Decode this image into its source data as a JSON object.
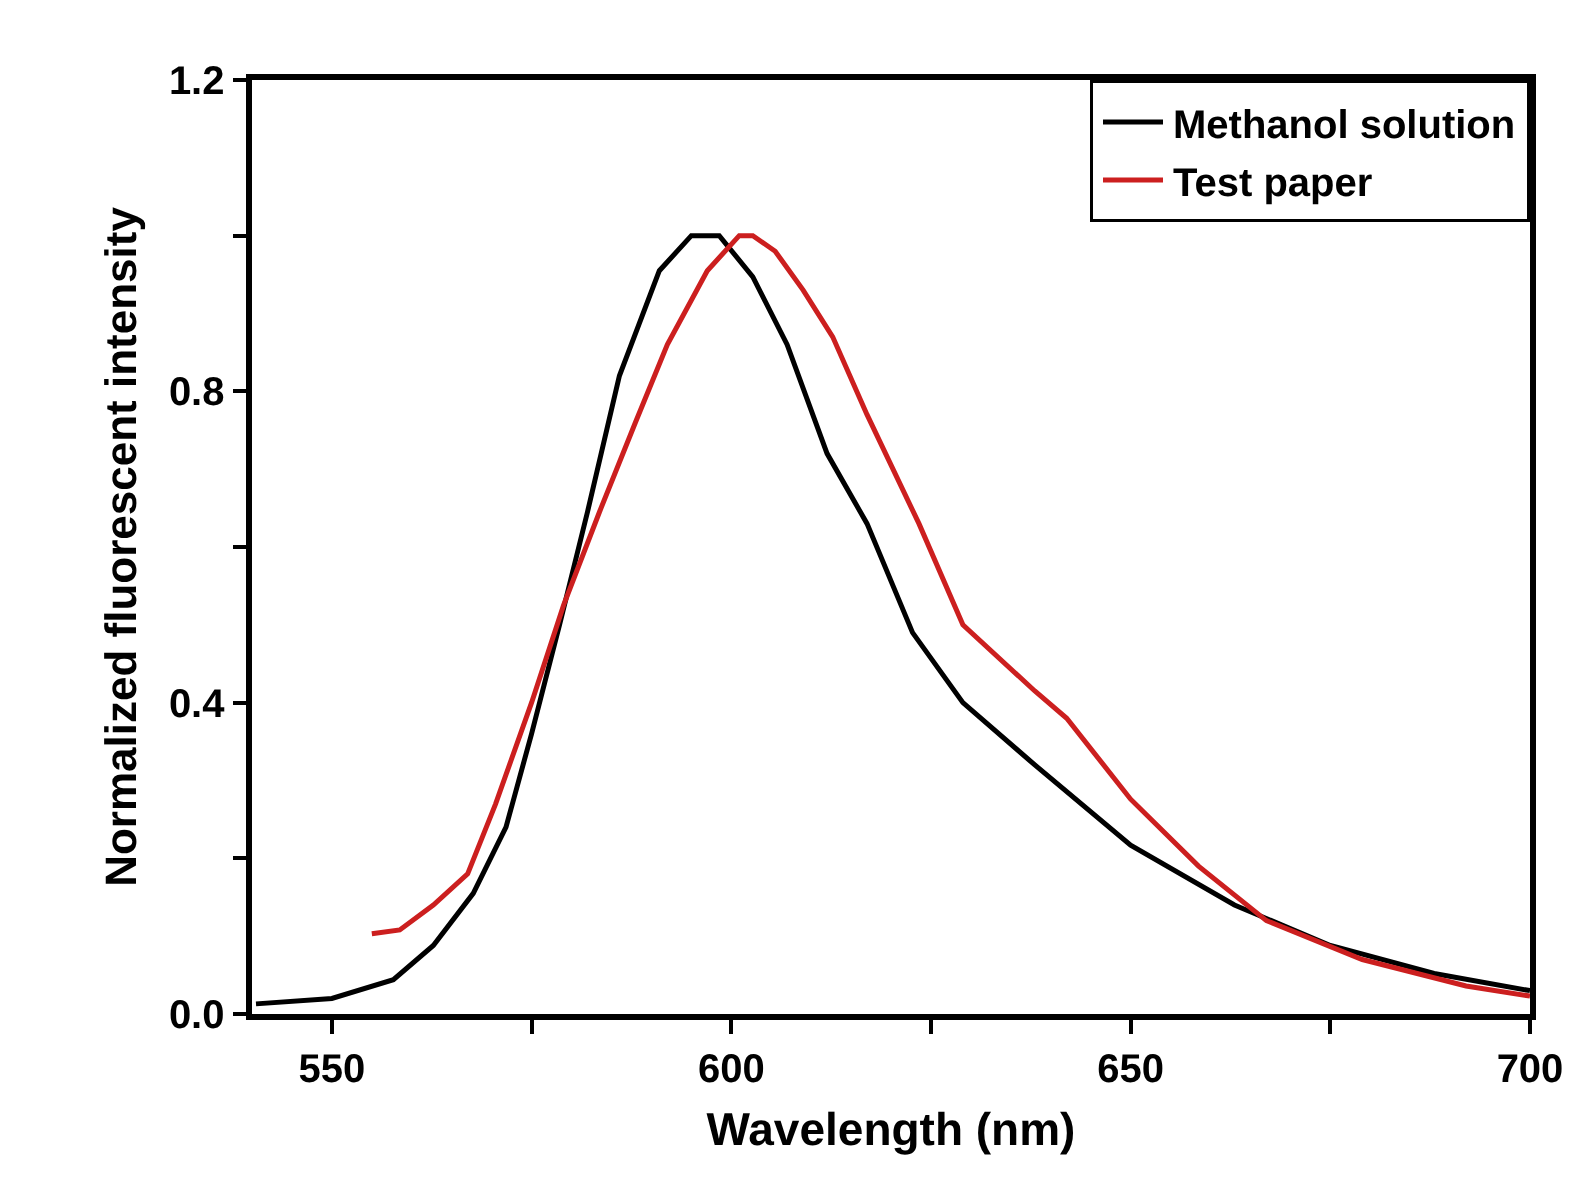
{
  "chart_data": {
    "type": "line",
    "xlabel": "Wavelength (nm)",
    "ylabel": "Normalized fluorescent intensity",
    "xlim": [
      540,
      700
    ],
    "ylim": [
      0,
      1.2
    ],
    "xticks": [
      550,
      {
        "value": 575,
        "label": null
      },
      600,
      {
        "value": 625,
        "label": null
      },
      650,
      {
        "value": 675,
        "label": null
      },
      700
    ],
    "yticks": [
      {
        "value": 0,
        "label": "0.0"
      },
      {
        "value": 0.2,
        "label": null
      },
      0.4,
      {
        "value": 0.6,
        "label": null
      },
      0.8,
      {
        "value": 1.0,
        "label": null
      },
      1.2
    ],
    "grid": false,
    "legend": "top right",
    "marker": "none",
    "line_style": "solid",
    "series": [
      {
        "name": "Methanol solution",
        "color": "#000000",
        "x": [
          540.5,
          550,
          557.7,
          562.7,
          567.7,
          571.8,
          575,
          578.5,
          582,
          586,
          591,
          595,
          598.5,
          602.7,
          607,
          612,
          617,
          622.7,
          629,
          638,
          650,
          663,
          675,
          688,
          700
        ],
        "values": [
          0.013,
          0.02,
          0.044,
          0.088,
          0.155,
          0.24,
          0.36,
          0.5,
          0.645,
          0.82,
          0.955,
          1.0,
          1.0,
          0.947,
          0.86,
          0.72,
          0.63,
          0.49,
          0.4,
          0.32,
          0.217,
          0.14,
          0.088,
          0.052,
          0.03
        ]
      },
      {
        "name": "Test paper",
        "color": "#cc1f1f",
        "x": [
          555,
          558.5,
          562.7,
          567,
          570.5,
          575,
          579,
          583.5,
          588,
          592,
          597,
          601,
          602.7,
          605.5,
          609,
          612.7,
          617,
          623.5,
          629,
          638,
          642,
          650,
          658.5,
          667,
          679,
          692,
          700
        ],
        "values": [
          0.103,
          0.108,
          0.14,
          0.18,
          0.27,
          0.4,
          0.525,
          0.645,
          0.76,
          0.86,
          0.955,
          1.0,
          1.0,
          0.98,
          0.93,
          0.87,
          0.77,
          0.63,
          0.5,
          0.415,
          0.38,
          0.276,
          0.19,
          0.12,
          0.07,
          0.036,
          0.023
        ]
      }
    ]
  }
}
